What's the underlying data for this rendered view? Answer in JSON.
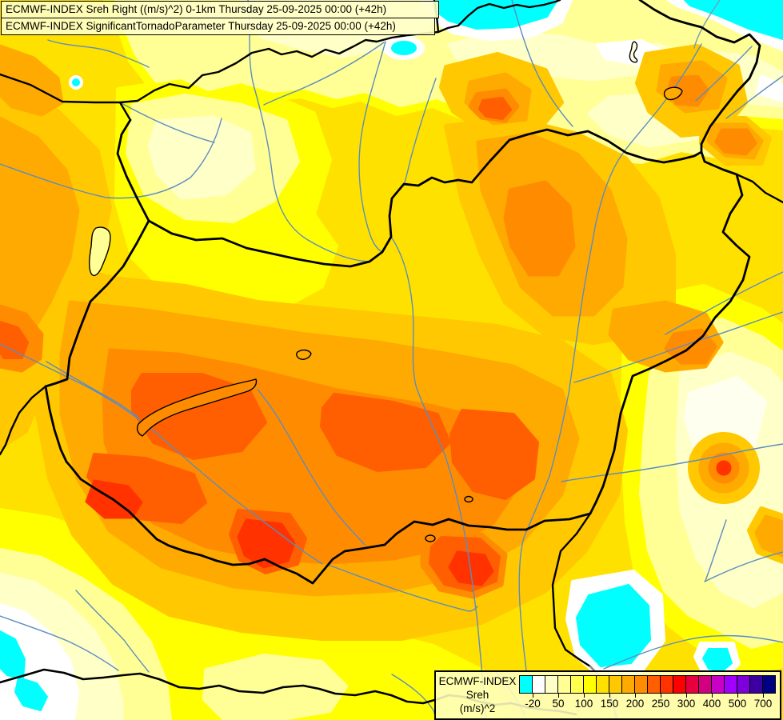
{
  "header": {
    "line1": "ECMWF-INDEX Sreh Right ((m/s)^2) 0-1km Thursday 25-09-2025 00:00 (+42h)",
    "line2": "ECMWF-INDEX SignificantTornadoParameter Thursday 25-09-2025 00:00 (+42h)"
  },
  "legend": {
    "title_lines": [
      "ECMWF-INDEX",
      "Sreh",
      "(m/s)^2"
    ],
    "swatches": [
      "#00FFFF",
      "#FFFFFF",
      "#FFFFC8",
      "#FFFF96",
      "#FFFF50",
      "#FFFF00",
      "#FFE100",
      "#FFC800",
      "#FFAA00",
      "#FF8C00",
      "#FF5F00",
      "#FF3200",
      "#FF0000",
      "#E60040",
      "#D20080",
      "#C800C8",
      "#A000FF",
      "#7D00DC",
      "#3C00A0",
      "#000082"
    ],
    "tick_labels": [
      "-20",
      "50",
      "100",
      "150",
      "200",
      "250",
      "300",
      "400",
      "500",
      "700"
    ],
    "tick_boundaries": [
      1,
      3,
      5,
      7,
      9,
      11,
      13,
      15,
      17,
      19
    ]
  },
  "map": {
    "field_colors": {
      "base_yellow": "#FFE100",
      "yellow": "#FFFF00",
      "pale_yellow": "#FFFF96",
      "ivory": "#FFFFC8",
      "white": "#FFFFFF",
      "gold": "#FFC800",
      "orange": "#FFAA00",
      "dark_orange": "#FF8C00",
      "red_orange": "#FF5F00",
      "red": "#FF3200",
      "cyan_lake": "#00FFFF"
    },
    "line_colors": {
      "country_border": "#000000",
      "river": "#5B8DC0",
      "secondary_border": "#888888"
    }
  }
}
